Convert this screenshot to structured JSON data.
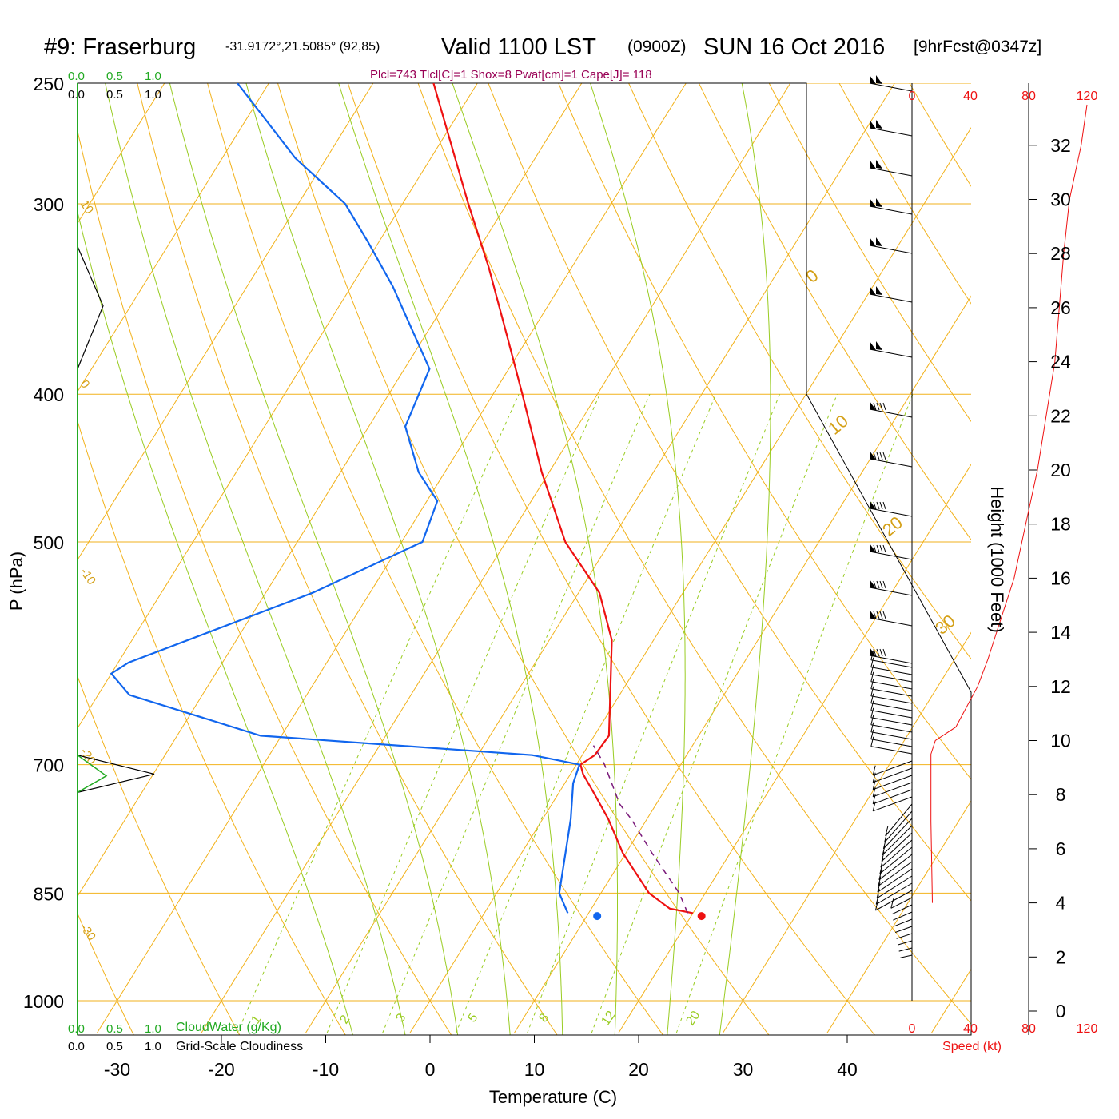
{
  "header": {
    "station": "#9: Fraserburg",
    "coords": "-31.9172°,21.5085° (92,85)",
    "valid": "Valid 1100 LST",
    "utc": "(0900Z)",
    "date": "SUN 16 Oct 2016",
    "forecast": "[9hrFcst@0347z]",
    "indices": "Plcl=743 Tlcl[C]=1 Shox=8 Pwat[cm]=1 Cape[J]= 118"
  },
  "scales": {
    "cloudwater_ticks": [
      "0.0",
      "0.5",
      "1.0"
    ],
    "cloudiness_ticks": [
      "0.0",
      "0.5",
      "1.0"
    ],
    "cloudwater_label": "CloudWater (g/Kg)",
    "cloudiness_label": "Grid-Scale Cloudiness",
    "speed_ticks": [
      "0",
      "40",
      "80",
      "120"
    ],
    "speed_label": "Speed (kt)",
    "height_label": "Height (1000 Feet)"
  },
  "chart_data": {
    "type": "line",
    "title": "Skew-T log-P sounding",
    "xlabel": "Temperature (C)",
    "ylabel": "P (hPa)",
    "x_ticks": [
      -30,
      -20,
      -10,
      0,
      10,
      20,
      30,
      40
    ],
    "y_ticks": [
      250,
      300,
      400,
      500,
      700,
      850,
      1000
    ],
    "ylim": [
      1050,
      250
    ],
    "height_ticks_kft": [
      0,
      2,
      4,
      6,
      8,
      10,
      12,
      14,
      16,
      18,
      20,
      22,
      24,
      26,
      28,
      30,
      32
    ],
    "dry_adiabat_labels": [
      "10",
      "0",
      "-10",
      "-20",
      "-30"
    ],
    "isotherm_labels": [
      "0",
      "10",
      "20",
      "30"
    ],
    "mixing_ratio_labels": [
      "1",
      "2",
      "3",
      "5",
      "8",
      "12",
      "20"
    ],
    "series": [
      {
        "name": "Temperature",
        "color": "#ee1111",
        "points": [
          {
            "p": 876,
            "t": 20.0
          },
          {
            "p": 870,
            "t": 17.5
          },
          {
            "p": 850,
            "t": 14.6
          },
          {
            "p": 800,
            "t": 9.7
          },
          {
            "p": 760,
            "t": 6.3
          },
          {
            "p": 730,
            "t": 3.3
          },
          {
            "p": 710,
            "t": 1.2
          },
          {
            "p": 700,
            "t": 0.4
          },
          {
            "p": 690,
            "t": 1.2
          },
          {
            "p": 670,
            "t": 1.4
          },
          {
            "p": 620,
            "t": -1.5
          },
          {
            "p": 580,
            "t": -4.0
          },
          {
            "p": 540,
            "t": -8.0
          },
          {
            "p": 500,
            "t": -14.3
          },
          {
            "p": 450,
            "t": -20.7
          },
          {
            "p": 400,
            "t": -27.2
          },
          {
            "p": 360,
            "t": -33.1
          },
          {
            "p": 330,
            "t": -38.0
          },
          {
            "p": 300,
            "t": -43.7
          },
          {
            "p": 250,
            "t": -54.2
          }
        ]
      },
      {
        "name": "Dewpoint",
        "color": "#1166ee",
        "points": [
          {
            "p": 876,
            "t": 8.0
          },
          {
            "p": 850,
            "t": 6.0
          },
          {
            "p": 760,
            "t": 2.7
          },
          {
            "p": 720,
            "t": 0.8
          },
          {
            "p": 700,
            "t": 0.3
          },
          {
            "p": 690,
            "t": -4.8
          },
          {
            "p": 670,
            "t": -32.0
          },
          {
            "p": 630,
            "t": -47.0
          },
          {
            "p": 610,
            "t": -50.0
          },
          {
            "p": 600,
            "t": -49.0
          },
          {
            "p": 540,
            "t": -35.5
          },
          {
            "p": 500,
            "t": -28.0
          },
          {
            "p": 470,
            "t": -29.0
          },
          {
            "p": 450,
            "t": -32.5
          },
          {
            "p": 420,
            "t": -36.5
          },
          {
            "p": 385,
            "t": -37.6
          },
          {
            "p": 340,
            "t": -46.0
          },
          {
            "p": 318,
            "t": -51.0
          },
          {
            "p": 300,
            "t": -55.5
          },
          {
            "p": 280,
            "t": -63.0
          },
          {
            "p": 250,
            "t": -73.0
          }
        ]
      },
      {
        "name": "Parcel",
        "color": "#7a1a7a",
        "dashed": true,
        "points": [
          {
            "p": 876,
            "t": 19.5
          },
          {
            "p": 850,
            "t": 17.5
          },
          {
            "p": 800,
            "t": 12.5
          },
          {
            "p": 760,
            "t": 8.5
          },
          {
            "p": 743,
            "t": 6.5
          },
          {
            "p": 720,
            "t": 4.5
          },
          {
            "p": 700,
            "t": 2.7
          },
          {
            "p": 680,
            "t": 0.5
          }
        ]
      }
    ],
    "surface_points": [
      {
        "name": "surface temperature",
        "p": 880,
        "t": 21.0,
        "color": "#ee1111"
      },
      {
        "name": "surface dewpoint",
        "p": 880,
        "t": 11.0,
        "color": "#1166ee"
      }
    ],
    "wind_speed_kt": [
      {
        "h": 4.0,
        "s": 14
      },
      {
        "h": 7.0,
        "s": 13
      },
      {
        "h": 9.5,
        "s": 13
      },
      {
        "h": 10.0,
        "s": 16
      },
      {
        "h": 10.5,
        "s": 30
      },
      {
        "h": 12.0,
        "s": 45
      },
      {
        "h": 13.0,
        "s": 52
      },
      {
        "h": 14.0,
        "s": 58
      },
      {
        "h": 16.0,
        "s": 70
      },
      {
        "h": 18.0,
        "s": 78
      },
      {
        "h": 20.0,
        "s": 86
      },
      {
        "h": 24.0,
        "s": 98
      },
      {
        "h": 28.0,
        "s": 104
      },
      {
        "h": 30.0,
        "s": 108
      },
      {
        "h": 32.0,
        "s": 116
      },
      {
        "h": 33.5,
        "s": 120
      }
    ],
    "grid_cloudiness": [
      {
        "p": 320,
        "v": 0.0
      },
      {
        "p": 350,
        "v": 0.4
      },
      {
        "p": 385,
        "v": 0.0
      },
      {
        "p": 690,
        "v": 0.0
      },
      {
        "p": 710,
        "v": 1.2
      },
      {
        "p": 730,
        "v": 0.0
      }
    ],
    "cloud_water": [
      {
        "p": 690,
        "v": 0.0
      },
      {
        "p": 712,
        "v": 0.45
      },
      {
        "p": 730,
        "v": 0.0
      }
    ]
  }
}
